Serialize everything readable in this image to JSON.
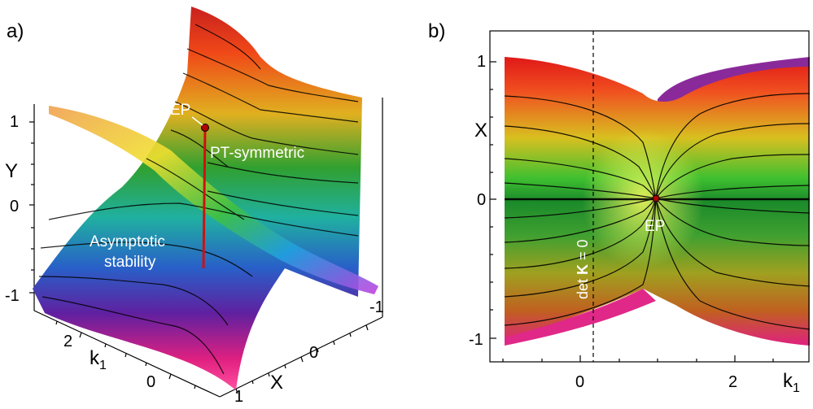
{
  "panel_a": {
    "label": "a)",
    "y_axis": {
      "title": "Y",
      "ticks": [
        "1",
        "0",
        "-1"
      ]
    },
    "k1_axis": {
      "title": "k",
      "subscript": "1",
      "ticks": [
        "2",
        "0"
      ]
    },
    "x_axis": {
      "title": "X",
      "ticks": [
        "-1",
        "0",
        "1"
      ]
    },
    "annotations": {
      "ep": "EP",
      "pt": "PT-symmetric",
      "asym_1": "Asymptotic",
      "asym_2": "stability"
    }
  },
  "panel_b": {
    "label": "b)",
    "x_axis": {
      "title": "X",
      "ticks": [
        "1",
        "0",
        "-1"
      ]
    },
    "k1_axis": {
      "title": "k",
      "subscript": "1",
      "ticks": [
        "0",
        "2"
      ]
    },
    "annotations": {
      "ep": "EP",
      "det_prefix": "det ",
      "det_bold": "K",
      "det_suffix": " = 0"
    }
  }
}
